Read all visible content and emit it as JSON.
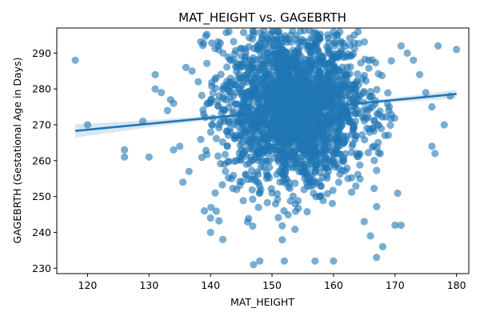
{
  "chart_data": {
    "type": "scatter",
    "title": "MAT_HEIGHT vs. GAGEBRTH",
    "xlabel": "MAT_HEIGHT",
    "ylabel": "GAGEBRTH (Gestational Age in Days)",
    "xlim": [
      115,
      182
    ],
    "ylim": [
      228.5,
      297
    ],
    "x_ticks": [
      120,
      130,
      140,
      150,
      160,
      170,
      180
    ],
    "y_ticks": [
      230,
      240,
      250,
      260,
      270,
      280,
      290
    ],
    "grid": false,
    "legend": "none",
    "point_color": "#1f77b4",
    "regression_line": {
      "x": [
        118,
        180
      ],
      "y": [
        268.3,
        278.6
      ],
      "color": "#1f77b4",
      "ci_color": "#1f77b4"
    },
    "outliers": [
      [
        118,
        288
      ],
      [
        120,
        270
      ],
      [
        126,
        263
      ],
      [
        126,
        261
      ],
      [
        129,
        271
      ],
      [
        130,
        261
      ],
      [
        131,
        284
      ],
      [
        131,
        280
      ],
      [
        132,
        279
      ],
      [
        133,
        274
      ],
      [
        133.5,
        277
      ],
      [
        134,
        263
      ],
      [
        134,
        276
      ],
      [
        135,
        264
      ],
      [
        135.5,
        254
      ],
      [
        136,
        286
      ],
      [
        136.5,
        257
      ],
      [
        137,
        285
      ],
      [
        138,
        282
      ],
      [
        173,
        288
      ],
      [
        174,
        284
      ],
      [
        175,
        279
      ],
      [
        176,
        275
      ],
      [
        176,
        264
      ],
      [
        176.5,
        262
      ],
      [
        177,
        292
      ],
      [
        178,
        270
      ],
      [
        179,
        278
      ],
      [
        180,
        291
      ],
      [
        170,
        242
      ],
      [
        171,
        242
      ],
      [
        167,
        233
      ],
      [
        168,
        236
      ],
      [
        147,
        231
      ],
      [
        148,
        232
      ],
      [
        152,
        232
      ],
      [
        157,
        232
      ],
      [
        160,
        232
      ],
      [
        143,
        296
      ],
      [
        147,
        296
      ],
      [
        160,
        296
      ],
      [
        164,
        296
      ],
      [
        171,
        292
      ],
      [
        172,
        290
      ],
      [
        140,
        244
      ],
      [
        139,
        246
      ],
      [
        140,
        240
      ],
      [
        142,
        238
      ],
      [
        165,
        243
      ],
      [
        166,
        239
      ]
    ],
    "cluster": {
      "center": [
        153.5,
        275
      ],
      "x_sd": 5.8,
      "y_sd": 11,
      "x_range": [
        138,
        172
      ],
      "y_range": [
        232,
        296
      ],
      "count": 2400
    }
  }
}
